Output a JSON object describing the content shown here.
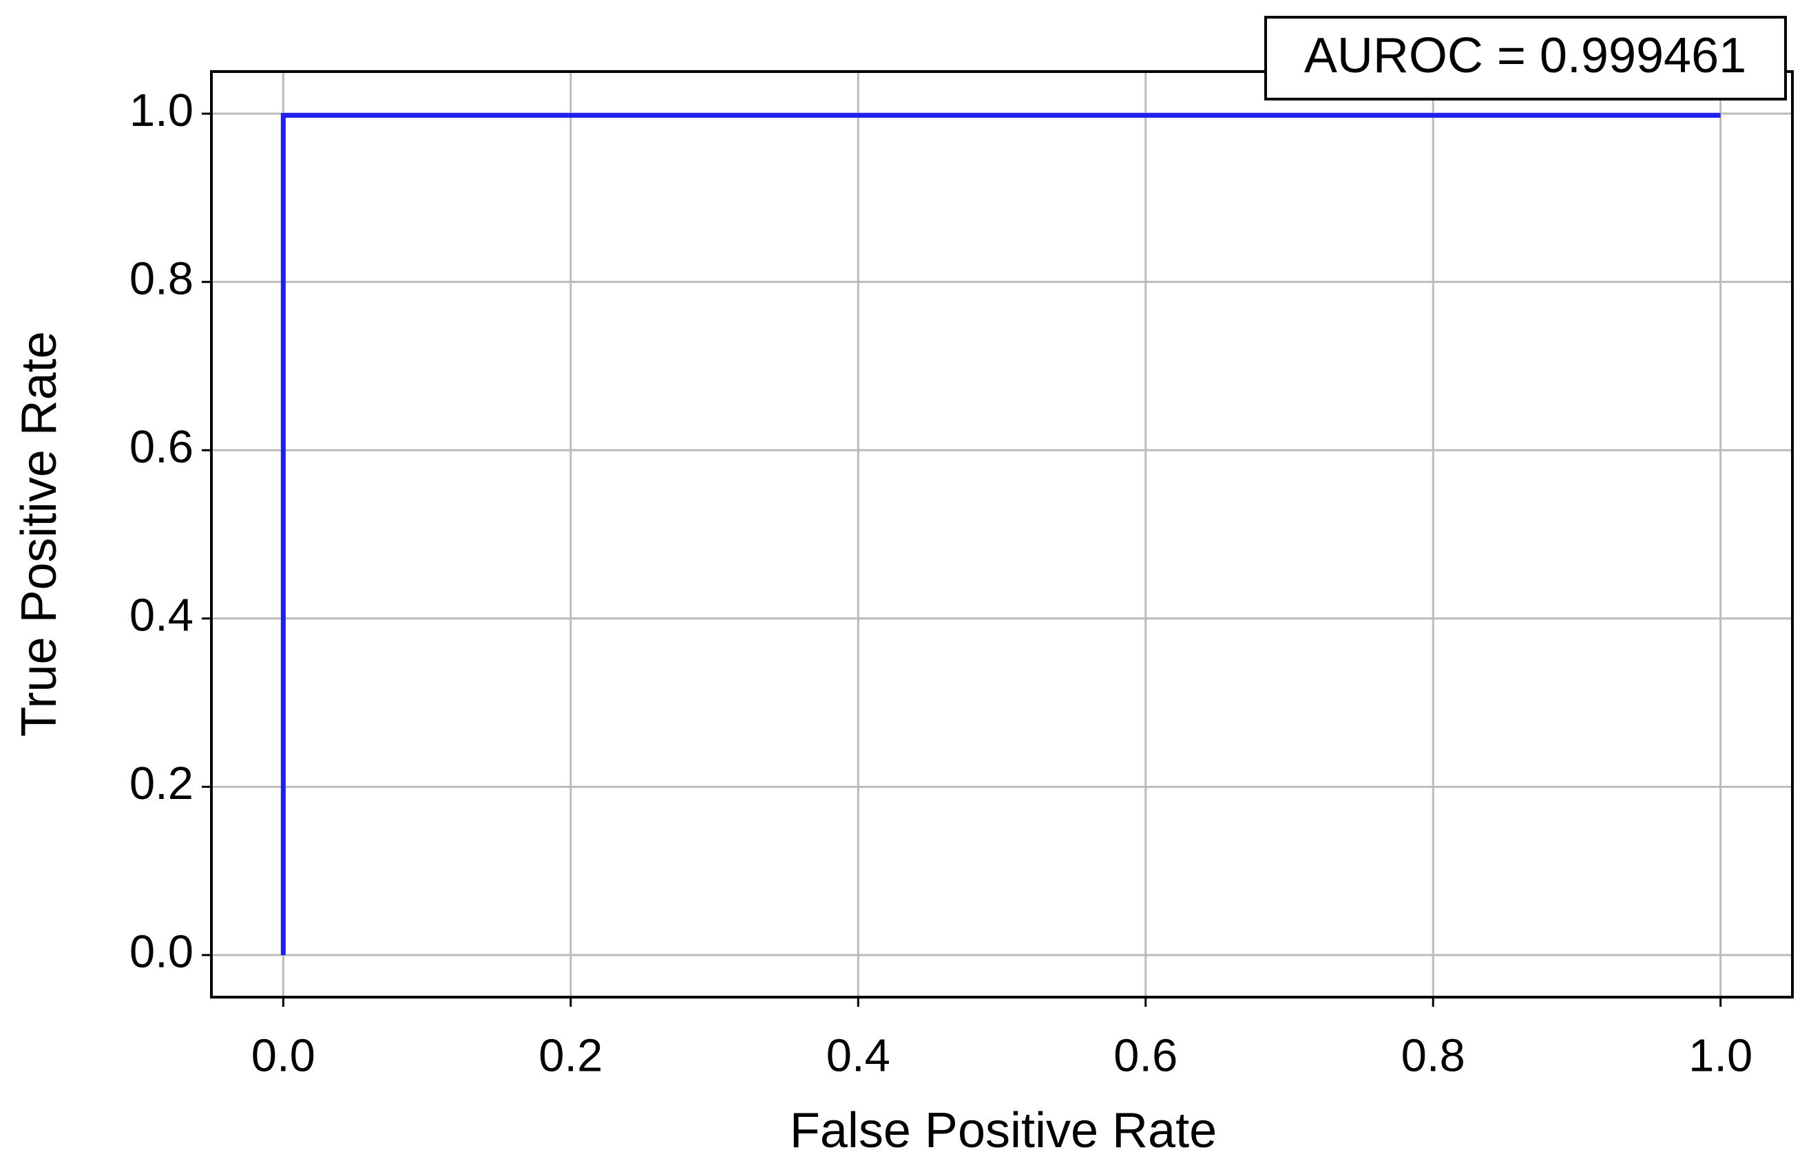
{
  "chart_data": {
    "type": "line",
    "xlabel": "False Positive Rate",
    "ylabel": "True Positive Rate",
    "annotation": "AUROC = 0.999461",
    "x": [
      0,
      0,
      1
    ],
    "values": [
      0,
      0.998,
      0.998
    ],
    "color": "#2020f0",
    "xlim": [
      -0.05,
      1.05
    ],
    "ylim": [
      -0.05,
      1.05
    ],
    "xticks": [
      {
        "value": 0,
        "label": "0.0"
      },
      0.2,
      0.4,
      0.6,
      0.8,
      {
        "value": 1,
        "label": "1.0"
      }
    ],
    "yticks": [
      {
        "value": 0,
        "label": "0.0"
      },
      0.2,
      0.4,
      0.6,
      0.8,
      {
        "value": 1,
        "label": "1.0"
      }
    ],
    "grid": true
  }
}
